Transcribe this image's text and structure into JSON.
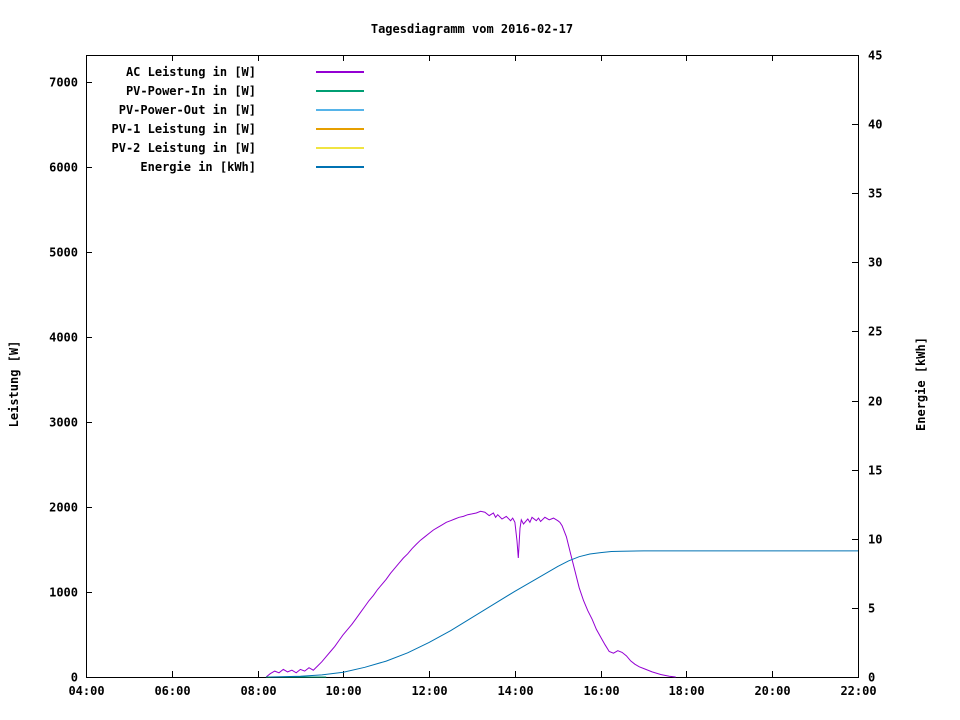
{
  "chart_data": {
    "type": "line",
    "title": "Tagesdiagramm vom 2016-02-17",
    "ylabel_left": "Leistung [W]",
    "ylabel_right": "Energie [kWh]",
    "xlabel": "",
    "xlim": [
      4,
      22
    ],
    "ylim_power": [
      0,
      7320
    ],
    "ylim_energy": [
      0,
      45
    ],
    "grid": false,
    "legend_position": "top-left-inside",
    "x_ticks": [
      {
        "label": "04:00",
        "value": 4
      },
      {
        "label": "06:00",
        "value": 6
      },
      {
        "label": "08:00",
        "value": 8
      },
      {
        "label": "10:00",
        "value": 10
      },
      {
        "label": "12:00",
        "value": 12
      },
      {
        "label": "14:00",
        "value": 14
      },
      {
        "label": "16:00",
        "value": 16
      },
      {
        "label": "18:00",
        "value": 18
      },
      {
        "label": "20:00",
        "value": 20
      },
      {
        "label": "22:00",
        "value": 22
      }
    ],
    "y_ticks_power": [
      {
        "label": "0",
        "value": 0
      },
      {
        "label": "1000",
        "value": 1000
      },
      {
        "label": "2000",
        "value": 2000
      },
      {
        "label": "3000",
        "value": 3000
      },
      {
        "label": "4000",
        "value": 4000
      },
      {
        "label": "5000",
        "value": 5000
      },
      {
        "label": "6000",
        "value": 6000
      },
      {
        "label": "7000",
        "value": 7000
      }
    ],
    "y_ticks_energy": [
      {
        "label": "0",
        "value": 0
      },
      {
        "label": "5",
        "value": 5
      },
      {
        "label": "10",
        "value": 10
      },
      {
        "label": "15",
        "value": 15
      },
      {
        "label": "20",
        "value": 20
      },
      {
        "label": "25",
        "value": 25
      },
      {
        "label": "30",
        "value": 30
      },
      {
        "label": "35",
        "value": 35
      },
      {
        "label": "40",
        "value": 40
      },
      {
        "label": "45",
        "value": 45
      }
    ],
    "series": [
      {
        "id": "ac-leistung",
        "name": "AC Leistung in [W]",
        "color": "#9400d3",
        "axis": "power",
        "points": [
          [
            8.2,
            0
          ],
          [
            8.3,
            40
          ],
          [
            8.4,
            70
          ],
          [
            8.5,
            50
          ],
          [
            8.6,
            90
          ],
          [
            8.7,
            60
          ],
          [
            8.8,
            80
          ],
          [
            8.9,
            50
          ],
          [
            9.0,
            90
          ],
          [
            9.1,
            70
          ],
          [
            9.2,
            110
          ],
          [
            9.3,
            80
          ],
          [
            9.4,
            130
          ],
          [
            9.5,
            180
          ],
          [
            9.6,
            240
          ],
          [
            9.7,
            300
          ],
          [
            9.8,
            360
          ],
          [
            9.9,
            430
          ],
          [
            10.0,
            500
          ],
          [
            10.1,
            560
          ],
          [
            10.2,
            620
          ],
          [
            10.3,
            690
          ],
          [
            10.4,
            760
          ],
          [
            10.5,
            830
          ],
          [
            10.6,
            900
          ],
          [
            10.7,
            960
          ],
          [
            10.8,
            1030
          ],
          [
            10.9,
            1090
          ],
          [
            11.0,
            1150
          ],
          [
            11.1,
            1220
          ],
          [
            11.2,
            1280
          ],
          [
            11.3,
            1340
          ],
          [
            11.4,
            1400
          ],
          [
            11.5,
            1450
          ],
          [
            11.6,
            1510
          ],
          [
            11.7,
            1560
          ],
          [
            11.8,
            1610
          ],
          [
            11.9,
            1650
          ],
          [
            12.0,
            1690
          ],
          [
            12.1,
            1730
          ],
          [
            12.2,
            1760
          ],
          [
            12.3,
            1790
          ],
          [
            12.4,
            1820
          ],
          [
            12.5,
            1840
          ],
          [
            12.6,
            1860
          ],
          [
            12.7,
            1880
          ],
          [
            12.8,
            1890
          ],
          [
            12.9,
            1910
          ],
          [
            13.0,
            1920
          ],
          [
            13.1,
            1930
          ],
          [
            13.2,
            1950
          ],
          [
            13.3,
            1940
          ],
          [
            13.4,
            1900
          ],
          [
            13.5,
            1930
          ],
          [
            13.55,
            1880
          ],
          [
            13.6,
            1910
          ],
          [
            13.7,
            1860
          ],
          [
            13.8,
            1890
          ],
          [
            13.9,
            1840
          ],
          [
            13.95,
            1870
          ],
          [
            14.0,
            1820
          ],
          [
            14.05,
            1600
          ],
          [
            14.08,
            1400
          ],
          [
            14.12,
            1750
          ],
          [
            14.15,
            1850
          ],
          [
            14.2,
            1800
          ],
          [
            14.3,
            1860
          ],
          [
            14.35,
            1820
          ],
          [
            14.4,
            1880
          ],
          [
            14.5,
            1840
          ],
          [
            14.55,
            1870
          ],
          [
            14.6,
            1830
          ],
          [
            14.7,
            1880
          ],
          [
            14.8,
            1850
          ],
          [
            14.9,
            1870
          ],
          [
            15.0,
            1840
          ],
          [
            15.05,
            1820
          ],
          [
            15.1,
            1780
          ],
          [
            15.2,
            1650
          ],
          [
            15.3,
            1450
          ],
          [
            15.4,
            1250
          ],
          [
            15.5,
            1050
          ],
          [
            15.6,
            900
          ],
          [
            15.7,
            780
          ],
          [
            15.8,
            680
          ],
          [
            15.9,
            560
          ],
          [
            16.0,
            470
          ],
          [
            16.1,
            380
          ],
          [
            16.2,
            300
          ],
          [
            16.3,
            280
          ],
          [
            16.4,
            310
          ],
          [
            16.5,
            290
          ],
          [
            16.6,
            250
          ],
          [
            16.7,
            190
          ],
          [
            16.8,
            150
          ],
          [
            16.9,
            120
          ],
          [
            17.0,
            100
          ],
          [
            17.2,
            60
          ],
          [
            17.4,
            30
          ],
          [
            17.6,
            10
          ],
          [
            17.75,
            0
          ]
        ]
      },
      {
        "id": "pv-power-in",
        "name": "PV-Power-In in [W]",
        "color": "#009e73",
        "axis": "power",
        "points": [
          [
            8.2,
            0
          ],
          [
            9.6,
            0
          ]
        ]
      },
      {
        "id": "pv-power-out",
        "name": "PV-Power-Out in [W]",
        "color": "#56b4e9",
        "axis": "power",
        "points": []
      },
      {
        "id": "pv1-leistung",
        "name": "PV-1 Leistung in [W]",
        "color": "#e69f00",
        "axis": "power",
        "points": []
      },
      {
        "id": "pv2-leistung",
        "name": "PV-2 Leistung in [W]",
        "color": "#f0e442",
        "axis": "power",
        "points": []
      },
      {
        "id": "energie",
        "name": "Energie in [kWh]",
        "color": "#0072b2",
        "axis": "energy",
        "points": [
          [
            8.3,
            0.0
          ],
          [
            9.0,
            0.05
          ],
          [
            9.5,
            0.15
          ],
          [
            10.0,
            0.35
          ],
          [
            10.5,
            0.7
          ],
          [
            11.0,
            1.15
          ],
          [
            11.5,
            1.75
          ],
          [
            12.0,
            2.5
          ],
          [
            12.5,
            3.35
          ],
          [
            13.0,
            4.3
          ],
          [
            13.5,
            5.25
          ],
          [
            14.0,
            6.2
          ],
          [
            14.5,
            7.1
          ],
          [
            15.0,
            8.0
          ],
          [
            15.25,
            8.4
          ],
          [
            15.5,
            8.7
          ],
          [
            15.75,
            8.9
          ],
          [
            16.0,
            9.0
          ],
          [
            16.25,
            9.08
          ],
          [
            16.5,
            9.1
          ],
          [
            17.0,
            9.12
          ],
          [
            18.0,
            9.12
          ],
          [
            20.0,
            9.12
          ],
          [
            22.0,
            9.12
          ]
        ]
      }
    ]
  }
}
